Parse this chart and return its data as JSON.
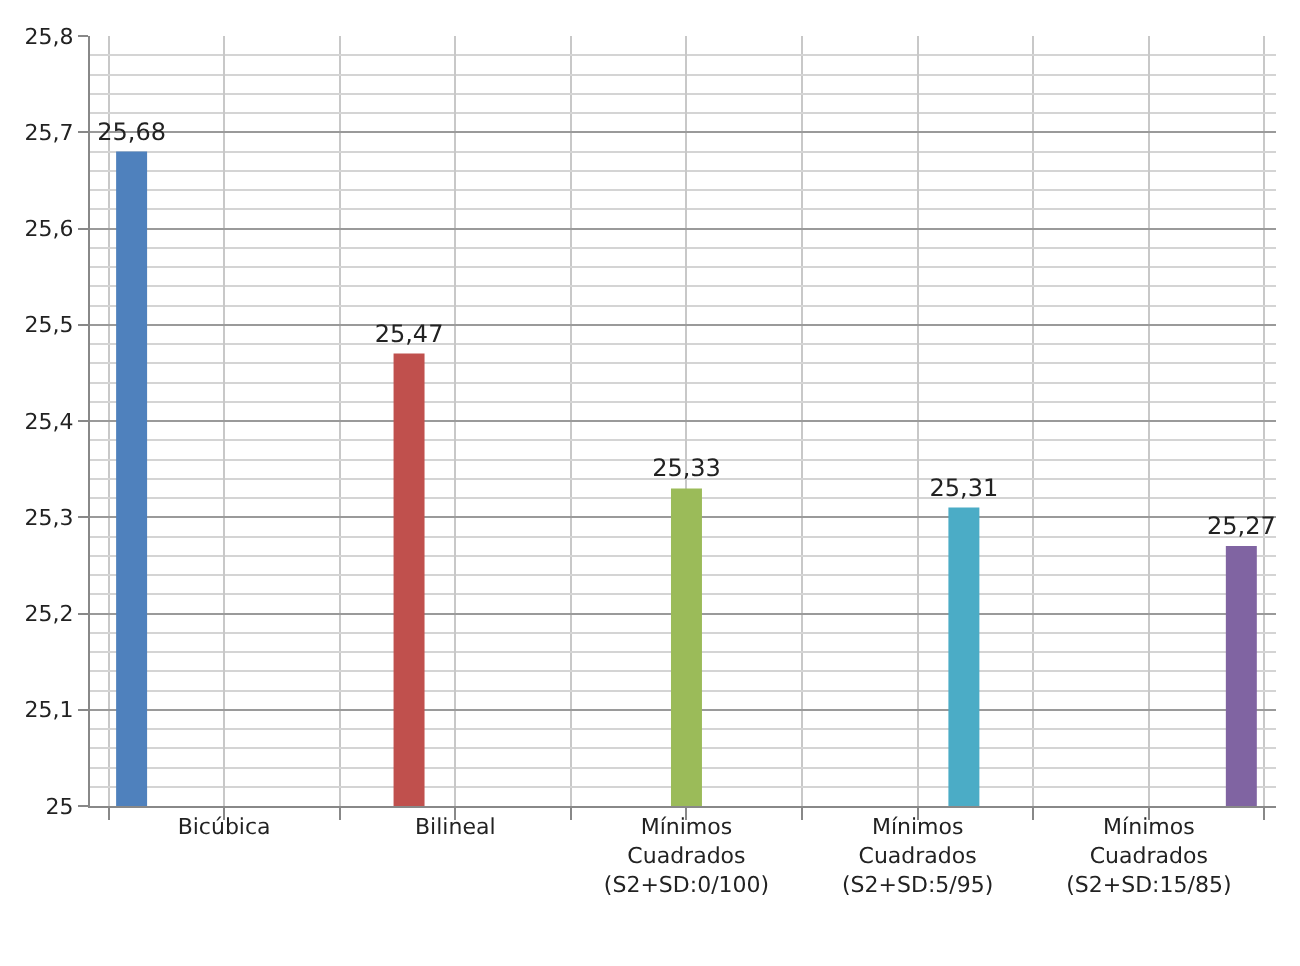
{
  "chart_data": {
    "type": "bar",
    "categories": [
      "Bicúbica",
      "Bilineal",
      "Mínimos Cuadrados (S2+SD:0/100)",
      "Mínimos Cuadrados (S2+SD:5/95)",
      "Mínimos Cuadrados (S2+SD:15/85)"
    ],
    "series": [
      {
        "color": "#4f81bd",
        "values": [
          25.68,
          null,
          null,
          null,
          null
        ],
        "value_labels": [
          "25,68",
          null,
          null,
          null,
          null
        ]
      },
      {
        "color": "#c0504d",
        "values": [
          null,
          25.47,
          null,
          null,
          null
        ],
        "value_labels": [
          null,
          "25,47",
          null,
          null,
          null
        ]
      },
      {
        "color": "#9bbb59",
        "values": [
          null,
          null,
          25.33,
          null,
          null
        ],
        "value_labels": [
          null,
          null,
          "25,33",
          null,
          null
        ]
      },
      {
        "color": "#4bacc6",
        "values": [
          null,
          null,
          null,
          25.31,
          null
        ],
        "value_labels": [
          null,
          null,
          null,
          "25,31",
          null
        ]
      },
      {
        "color": "#8064a2",
        "values": [
          null,
          null,
          null,
          null,
          25.27
        ],
        "value_labels": [
          null,
          null,
          null,
          null,
          "25,27"
        ]
      }
    ],
    "ylim": [
      25,
      25.8
    ],
    "yticks": [
      25,
      {
        "value": 25.1,
        "label": "25,1"
      },
      {
        "value": 25.2,
        "label": "25,2"
      },
      {
        "value": 25.3,
        "label": "25,3"
      },
      {
        "value": 25.4,
        "label": "25,4"
      },
      {
        "value": 25.5,
        "label": "25,5"
      },
      {
        "value": 25.6,
        "label": "25,6"
      },
      {
        "value": 25.7,
        "label": "25,7"
      },
      {
        "value": 25.8,
        "label": "25,8"
      }
    ],
    "grid": true
  }
}
